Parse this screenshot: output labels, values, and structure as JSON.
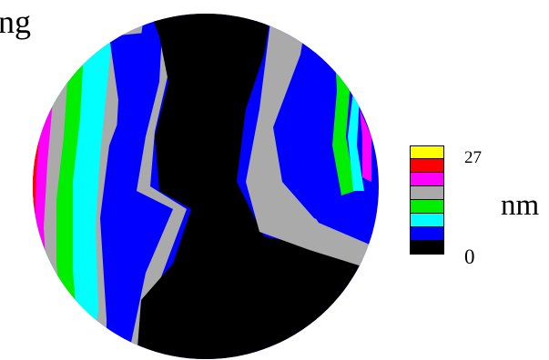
{
  "title_fragment": "ng",
  "unit": "nm",
  "scale": {
    "max": "27",
    "min": "0"
  },
  "palette": [
    "#ffff00",
    "#ff0000",
    "#ff00ff",
    "#aaaaaa",
    "#00ee00",
    "#00ffff",
    "#0000ff",
    "#000000"
  ]
}
